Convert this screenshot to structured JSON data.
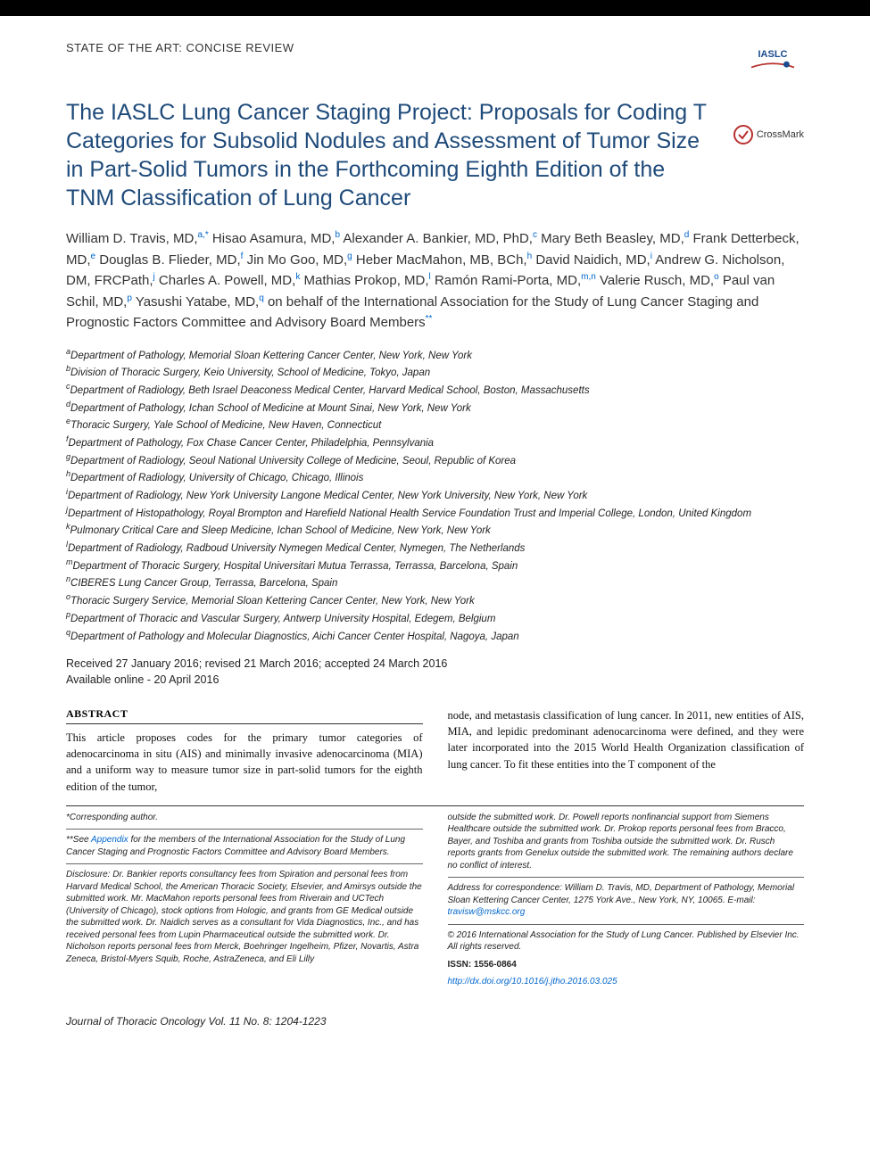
{
  "section_label": "STATE OF THE ART: CONCISE REVIEW",
  "logo": {
    "iaslc_text": "IASLC"
  },
  "crossmark_label": "CrossMark",
  "title": "The IASLC Lung Cancer Staging Project: Proposals for Coding T Categories for Subsolid Nodules and Assessment of Tumor Size in Part-Solid Tumors in the Forthcoming Eighth Edition of the TNM Classification of Lung Cancer",
  "authors": [
    {
      "name": "William D. Travis, MD,",
      "sup": "a,*"
    },
    {
      "name": "Hisao Asamura, MD,",
      "sup": "b"
    },
    {
      "name": "Alexander A. Bankier, MD, PhD,",
      "sup": "c"
    },
    {
      "name": "Mary Beth Beasley, MD,",
      "sup": "d"
    },
    {
      "name": "Frank Detterbeck, MD,",
      "sup": "e"
    },
    {
      "name": "Douglas B. Flieder, MD,",
      "sup": "f"
    },
    {
      "name": "Jin Mo Goo, MD,",
      "sup": "g"
    },
    {
      "name": "Heber MacMahon, MB, BCh,",
      "sup": "h"
    },
    {
      "name": "David Naidich, MD,",
      "sup": "i"
    },
    {
      "name": "Andrew G. Nicholson, DM, FRCPath,",
      "sup": "j"
    },
    {
      "name": "Charles A. Powell, MD,",
      "sup": "k"
    },
    {
      "name": "Mathias Prokop, MD,",
      "sup": "l"
    },
    {
      "name": "Ramón Rami-Porta, MD,",
      "sup": "m,n"
    },
    {
      "name": "Valerie Rusch, MD,",
      "sup": "o"
    },
    {
      "name": "Paul van Schil, MD,",
      "sup": "p"
    },
    {
      "name": "Yasushi Yatabe, MD,",
      "sup": "q"
    }
  ],
  "authors_tail": "on behalf of the International Association for the Study of Lung Cancer Staging and Prognostic Factors Committee and Advisory Board Members",
  "authors_tail_sup": "**",
  "affiliations": [
    {
      "sup": "a",
      "text": "Department of Pathology, Memorial Sloan Kettering Cancer Center, New York, New York"
    },
    {
      "sup": "b",
      "text": "Division of Thoracic Surgery, Keio University, School of Medicine, Tokyo, Japan"
    },
    {
      "sup": "c",
      "text": "Department of Radiology, Beth Israel Deaconess Medical Center, Harvard Medical School, Boston, Massachusetts"
    },
    {
      "sup": "d",
      "text": "Department of Pathology, Ichan School of Medicine at Mount Sinai, New York, New York"
    },
    {
      "sup": "e",
      "text": "Thoracic Surgery, Yale School of Medicine, New Haven, Connecticut"
    },
    {
      "sup": "f",
      "text": "Department of Pathology, Fox Chase Cancer Center, Philadelphia, Pennsylvania"
    },
    {
      "sup": "g",
      "text": "Department of Radiology, Seoul National University College of Medicine, Seoul, Republic of Korea"
    },
    {
      "sup": "h",
      "text": "Department of Radiology, University of Chicago, Chicago, Illinois"
    },
    {
      "sup": "i",
      "text": "Department of Radiology, New York University Langone Medical Center, New York University, New York, New York"
    },
    {
      "sup": "j",
      "text": "Department of Histopathology, Royal Brompton and Harefield National Health Service Foundation Trust and Imperial College, London, United Kingdom"
    },
    {
      "sup": "k",
      "text": "Pulmonary Critical Care and Sleep Medicine, Ichan School of Medicine, New York, New York"
    },
    {
      "sup": "l",
      "text": "Department of Radiology, Radboud University Nymegen Medical Center, Nymegen, The Netherlands"
    },
    {
      "sup": "m",
      "text": "Department of Thoracic Surgery, Hospital Universitari Mutua Terrassa, Terrassa, Barcelona, Spain"
    },
    {
      "sup": "n",
      "text": "CIBERES Lung Cancer Group, Terrassa, Barcelona, Spain"
    },
    {
      "sup": "o",
      "text": "Thoracic Surgery Service, Memorial Sloan Kettering Cancer Center, New York, New York"
    },
    {
      "sup": "p",
      "text": "Department of Thoracic and Vascular Surgery, Antwerp University Hospital, Edegem, Belgium"
    },
    {
      "sup": "q",
      "text": "Department of Pathology and Molecular Diagnostics, Aichi Cancer Center Hospital, Nagoya, Japan"
    }
  ],
  "dates": {
    "line1": "Received 27 January 2016; revised 21 March 2016; accepted 24 March 2016",
    "line2": "Available online - 20 April 2016"
  },
  "abstract": {
    "heading": "ABSTRACT",
    "left": "This article proposes codes for the primary tumor categories of adenocarcinoma in situ (AIS) and minimally invasive adenocarcinoma (MIA) and a uniform way to measure tumor size in part-solid tumors for the eighth edition of the tumor,",
    "right": "node, and metastasis classification of lung cancer. In 2011, new entities of AIS, MIA, and lepidic predominant adenocarcinoma were defined, and they were later incorporated into the 2015 World Health Organization classification of lung cancer. To fit these entities into the T component of the"
  },
  "footnotes": {
    "corresponding": "*Corresponding author.",
    "appendix_pre": "**See ",
    "appendix_link": "Appendix",
    "appendix_post": " for the members of the International Association for the Study of Lung Cancer Staging and Prognostic Factors Committee and Advisory Board Members.",
    "disclosure": "Disclosure: Dr. Bankier reports consultancy fees from Spiration and personal fees from Harvard Medical School, the American Thoracic Society, Elsevier, and Amirsys outside the submitted work. Mr. MacMahon reports personal fees from Riverain and UCTech (University of Chicago), stock options from Hologic, and grants from GE Medical outside the submitted work. Dr. Naidich serves as a consultant for Vida Diagnostics, Inc., and has received personal fees from Lupin Pharmaceutical outside the submitted work. Dr. Nicholson reports personal fees from Merck, Boehringer Ingelheim, Pfizer, Novartis, Astra Zeneca, Bristol-Myers Squib, Roche, AstraZeneca, and Eli Lilly",
    "disclosure_right": "outside the submitted work. Dr. Powell reports nonfinancial support from Siemens Healthcare outside the submitted work. Dr. Prokop reports personal fees from Bracco, Bayer, and Toshiba and grants from Toshiba outside the submitted work. Dr. Rusch reports grants from Genelux outside the submitted work. The remaining authors declare no conflict of interest.",
    "correspondence": "Address for correspondence: William D. Travis, MD, Department of Pathology, Memorial Sloan Kettering Cancer Center, 1275 York Ave., New York, NY, 10065. E-mail: ",
    "email": "travisw@mskcc.org",
    "copyright": "© 2016 International Association for the Study of Lung Cancer. Published by Elsevier Inc. All rights reserved.",
    "issn": "ISSN: 1556-0864",
    "doi": "http://dx.doi.org/10.1016/j.jtho.2016.03.025"
  },
  "journal_footer": "Journal of Thoracic Oncology    Vol. 11 No. 8: 1204-1223"
}
